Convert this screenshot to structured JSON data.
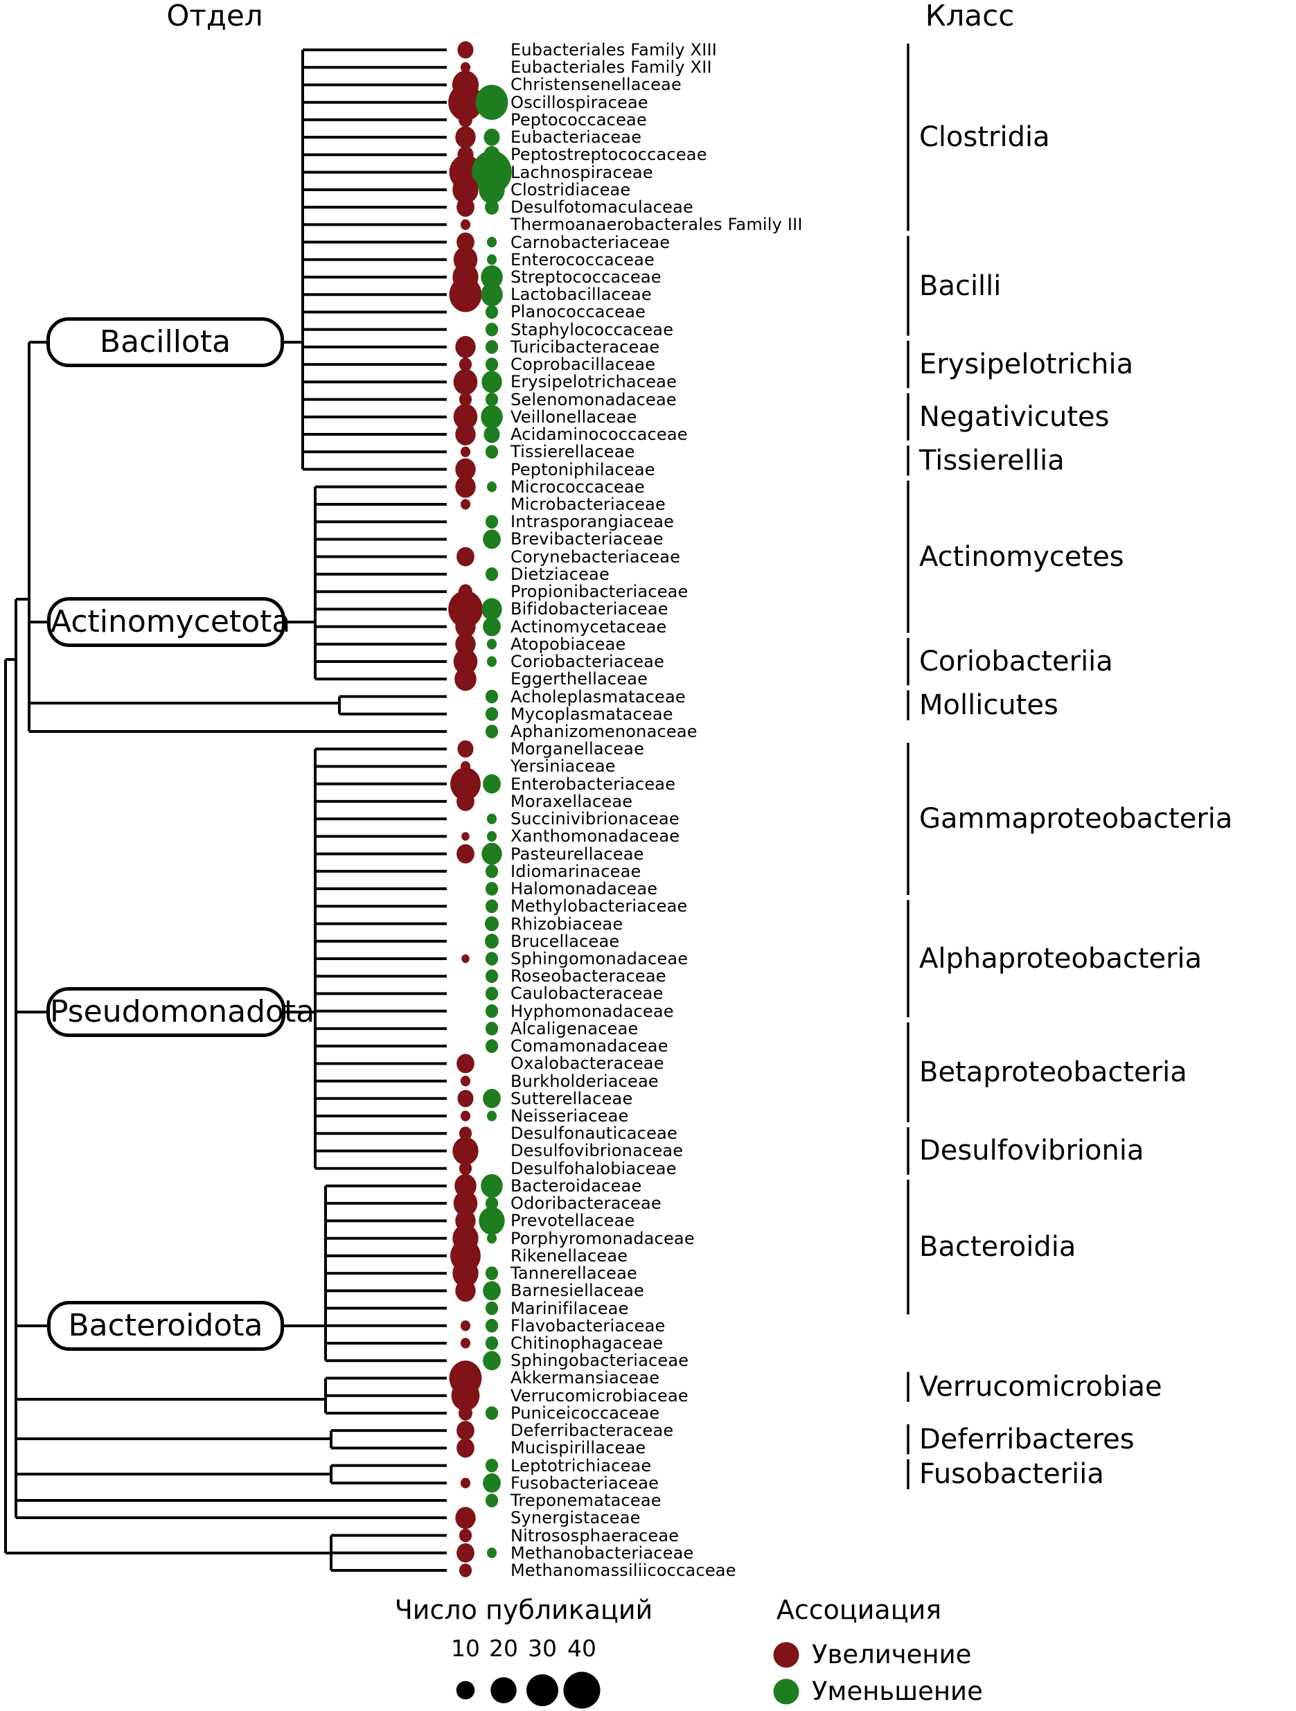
{
  "header": {
    "left": "Отдел",
    "right": "Класс"
  },
  "colors": {
    "increase": "#801317",
    "decrease": "#1e7d1e",
    "tree": "#000000",
    "legend_dot": "#000000"
  },
  "chart_data": {
    "type": "scatter",
    "description": "Phylogenetic tree of gut bacterial families; dot size = number of publications, color = direction of association",
    "size_scale": {
      "label": "Число публикаций",
      "ticks": [
        10,
        20,
        30,
        40
      ]
    },
    "association": {
      "label": "Ассоциация",
      "increase_label": "Увеличение",
      "decrease_label": "Уменьшение"
    },
    "phyla": [
      {
        "name": "Bacillota",
        "rows": [
          0,
          24
        ]
      },
      {
        "name": "Actinomycetota",
        "rows": [
          25,
          36
        ]
      },
      {
        "name": "Pseudomonadota",
        "rows": [
          40,
          64
        ]
      },
      {
        "name": "Bacteroidota",
        "rows": [
          65,
          75
        ]
      }
    ],
    "classes": [
      {
        "name": "Clostridia",
        "rows": [
          0,
          10
        ]
      },
      {
        "name": "Bacilli",
        "rows": [
          11,
          16
        ]
      },
      {
        "name": "Erysipelotrichia",
        "rows": [
          17,
          19
        ]
      },
      {
        "name": "Negativicutes",
        "rows": [
          20,
          22
        ]
      },
      {
        "name": "Tissierellia",
        "rows": [
          23,
          24
        ]
      },
      {
        "name": "Actinomycetes",
        "rows": [
          25,
          33
        ]
      },
      {
        "name": "Coriobacteriia",
        "rows": [
          34,
          36
        ]
      },
      {
        "name": "Mollicutes",
        "rows": [
          37,
          38
        ]
      },
      {
        "name": "Gammaproteobacteria",
        "rows": [
          40,
          48
        ]
      },
      {
        "name": "Alphaproteobacteria",
        "rows": [
          49,
          55
        ]
      },
      {
        "name": "Betaproteobacteria",
        "rows": [
          56,
          61
        ]
      },
      {
        "name": "Desulfovibrionia",
        "rows": [
          62,
          64
        ]
      },
      {
        "name": "Bacteroidia",
        "rows": [
          65,
          72
        ]
      },
      {
        "name": "Verrucomicrobiae",
        "rows": [
          76,
          77
        ]
      },
      {
        "name": "Deferribacteres",
        "rows": [
          79,
          80
        ]
      },
      {
        "name": "Fusobacteriia",
        "rows": [
          81,
          82
        ]
      }
    ],
    "families": [
      {
        "n": "Eubacteriales Family XIII",
        "inc": 8,
        "dec": 0
      },
      {
        "n": "Eubacteriales Family XII",
        "inc": 3,
        "dec": 0
      },
      {
        "n": "Christensenellaceae",
        "inc": 22,
        "dec": 0
      },
      {
        "n": "Oscillospiraceae",
        "inc": 37,
        "dec": 33
      },
      {
        "n": "Peptococcaceae",
        "inc": 6,
        "dec": 0
      },
      {
        "n": "Eubacteriaceae",
        "inc": 13,
        "dec": 8
      },
      {
        "n": "Peptostreptococcaceae",
        "inc": 8,
        "dec": 8
      },
      {
        "n": "Lachnospiraceae",
        "inc": 33,
        "dec": 50
      },
      {
        "n": "Clostridiaceae",
        "inc": 21,
        "dec": 21
      },
      {
        "n": "Desulfotomaculaceae",
        "inc": 10,
        "dec": 6
      },
      {
        "n": "Thermoanaerobacterales Family III",
        "inc": 3,
        "dec": 0
      },
      {
        "n": "Carnobacteriaceae",
        "inc": 10,
        "dec": 3
      },
      {
        "n": "Enterococcaceae",
        "inc": 18,
        "dec": 3
      },
      {
        "n": "Streptococcaceae",
        "inc": 21,
        "dec": 15
      },
      {
        "n": "Lactobacillaceae",
        "inc": 33,
        "dec": 15
      },
      {
        "n": "Planococcaceae",
        "inc": 0,
        "dec": 5
      },
      {
        "n": "Staphylococcaceae",
        "inc": 0,
        "dec": 5
      },
      {
        "n": "Turicibacteraceae",
        "inc": 13,
        "dec": 5
      },
      {
        "n": "Coprobacillaceae",
        "inc": 5,
        "dec": 5
      },
      {
        "n": "Erysipelotrichaceae",
        "inc": 18,
        "dec": 13
      },
      {
        "n": "Selenomonadaceae",
        "inc": 5,
        "dec": 5
      },
      {
        "n": "Veillonellaceae",
        "inc": 18,
        "dec": 15
      },
      {
        "n": "Acidaminococcaceae",
        "inc": 13,
        "dec": 8
      },
      {
        "n": "Tissierellaceae",
        "inc": 3,
        "dec": 5
      },
      {
        "n": "Peptoniphilaceae",
        "inc": 13,
        "dec": 0
      },
      {
        "n": "Micrococcaceae",
        "inc": 13,
        "dec": 3
      },
      {
        "n": "Microbacteriaceae",
        "inc": 3,
        "dec": 0
      },
      {
        "n": "Intrasporangiaceae",
        "inc": 0,
        "dec": 5
      },
      {
        "n": "Brevibacteriaceae",
        "inc": 0,
        "dec": 10
      },
      {
        "n": "Corynebacteriaceae",
        "inc": 10,
        "dec": 0
      },
      {
        "n": "Dietziaceae",
        "inc": 0,
        "dec": 5
      },
      {
        "n": "Propionibacteriaceae",
        "inc": 6,
        "dec": 0
      },
      {
        "n": "Bifidobacteriaceae",
        "inc": 37,
        "dec": 13
      },
      {
        "n": "Actinomycetaceae",
        "inc": 13,
        "dec": 10
      },
      {
        "n": "Atopobiaceae",
        "inc": 13,
        "dec": 3
      },
      {
        "n": "Coriobacteriaceae",
        "inc": 18,
        "dec": 3
      },
      {
        "n": "Eggerthellaceae",
        "inc": 15,
        "dec": 0
      },
      {
        "n": "Acholeplasmataceae",
        "inc": 0,
        "dec": 5
      },
      {
        "n": "Mycoplasmataceae",
        "inc": 0,
        "dec": 5
      },
      {
        "n": "Aphanizomenonaceae",
        "inc": 0,
        "dec": 5
      },
      {
        "n": "Morganellaceae",
        "inc": 8,
        "dec": 0
      },
      {
        "n": "Yersiniaceae",
        "inc": 3,
        "dec": 0
      },
      {
        "n": "Enterobacteriaceae",
        "inc": 29,
        "dec": 10
      },
      {
        "n": "Moraxellaceae",
        "inc": 10,
        "dec": 0
      },
      {
        "n": "Succinivibrionaceae",
        "inc": 0,
        "dec": 3
      },
      {
        "n": "Xanthomonadaceae",
        "inc": 2,
        "dec": 3
      },
      {
        "n": "Pasteurellaceae",
        "inc": 10,
        "dec": 13
      },
      {
        "n": "Idiomarinaceae",
        "inc": 0,
        "dec": 5
      },
      {
        "n": "Halomonadaceae",
        "inc": 0,
        "dec": 5
      },
      {
        "n": "Methylobacteriaceae",
        "inc": 0,
        "dec": 5
      },
      {
        "n": "Rhizobiaceae",
        "inc": 0,
        "dec": 6
      },
      {
        "n": "Brucellaceae",
        "inc": 0,
        "dec": 6
      },
      {
        "n": "Sphingomonadaceae",
        "inc": 2,
        "dec": 5
      },
      {
        "n": "Roseobacteraceae",
        "inc": 0,
        "dec": 5
      },
      {
        "n": "Caulobacteraceae",
        "inc": 0,
        "dec": 5
      },
      {
        "n": "Hyphomonadaceae",
        "inc": 0,
        "dec": 5
      },
      {
        "n": "Alcaligenaceae",
        "inc": 0,
        "dec": 5
      },
      {
        "n": "Comamonadaceae",
        "inc": 0,
        "dec": 5
      },
      {
        "n": "Oxalobacteraceae",
        "inc": 10,
        "dec": 0
      },
      {
        "n": "Burkholderiaceae",
        "inc": 3,
        "dec": 0
      },
      {
        "n": "Sutterellaceae",
        "inc": 8,
        "dec": 10
      },
      {
        "n": "Neisseriaceae",
        "inc": 3,
        "dec": 3
      },
      {
        "n": "Desulfonauticaceae",
        "inc": 5,
        "dec": 0
      },
      {
        "n": "Desulfovibrionaceae",
        "inc": 21,
        "dec": 0
      },
      {
        "n": "Desulfohalobiaceae",
        "inc": 5,
        "dec": 0
      },
      {
        "n": "Bacteroidaceae",
        "inc": 15,
        "dec": 15
      },
      {
        "n": "Odoribacteraceae",
        "inc": 18,
        "dec": 5
      },
      {
        "n": "Prevotellaceae",
        "inc": 13,
        "dec": 21
      },
      {
        "n": "Porphyromonadaceae",
        "inc": 21,
        "dec": 3
      },
      {
        "n": "Rikenellaceae",
        "inc": 29,
        "dec": 0
      },
      {
        "n": "Tannerellaceae",
        "inc": 21,
        "dec": 5
      },
      {
        "n": "Barnesiellaceae",
        "inc": 13,
        "dec": 10
      },
      {
        "n": "Marinifilaceae",
        "inc": 0,
        "dec": 5
      },
      {
        "n": "Flavobacteriaceae",
        "inc": 3,
        "dec": 5
      },
      {
        "n": "Chitinophagaceae",
        "inc": 3,
        "dec": 5
      },
      {
        "n": "Sphingobacteriaceae",
        "inc": 0,
        "dec": 10
      },
      {
        "n": "Akkermansiaceae",
        "inc": 33,
        "dec": 0
      },
      {
        "n": "Verrucomicrobiaceae",
        "inc": 25,
        "dec": 0
      },
      {
        "n": "Puniceicoccaceae",
        "inc": 6,
        "dec": 5
      },
      {
        "n": "Deferribacteraceae",
        "inc": 10,
        "dec": 0
      },
      {
        "n": "Mucispirillaceae",
        "inc": 10,
        "dec": 0
      },
      {
        "n": "Leptotrichiaceae",
        "inc": 0,
        "dec": 5
      },
      {
        "n": "Fusobacteriaceae",
        "inc": 3,
        "dec": 10
      },
      {
        "n": "Treponemataceae",
        "inc": 0,
        "dec": 5
      },
      {
        "n": "Synergistaceae",
        "inc": 13,
        "dec": 0
      },
      {
        "n": "Nitrososphaeraceae",
        "inc": 5,
        "dec": 0
      },
      {
        "n": "Methanobacteriaceae",
        "inc": 10,
        "dec": 3
      },
      {
        "n": "Methanomassiliicoccaceae",
        "inc": 5,
        "dec": 0
      }
    ]
  }
}
